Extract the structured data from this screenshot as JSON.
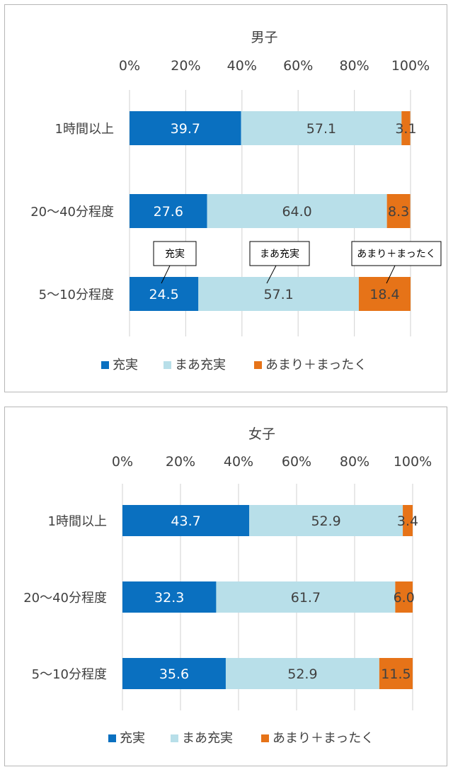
{
  "colors": {
    "fulfilled": "#0a70c0",
    "somewhat": "#b8dfe9",
    "notmuch": "#e67318",
    "gridline": "#d9d9d9",
    "text": "#404040"
  },
  "chart_data": [
    {
      "type": "bar",
      "orientation": "horizontal",
      "stacked": true,
      "title": "男子",
      "xlim": [
        0,
        100
      ],
      "ticks": [
        "0%",
        "20%",
        "40%",
        "60%",
        "80%",
        "100%"
      ],
      "categories": [
        "1時間以上",
        "20～40分程度",
        "5～10分程度"
      ],
      "series": [
        {
          "name": "充実",
          "values": [
            39.7,
            27.6,
            24.5
          ]
        },
        {
          "name": "まあ充実",
          "values": [
            57.1,
            64.0,
            57.1
          ]
        },
        {
          "name": "あまり＋まったく",
          "values": [
            3.1,
            8.3,
            18.4
          ]
        }
      ],
      "labels": [
        [
          "39.7",
          "57.1",
          "3.1"
        ],
        [
          "27.6",
          "64.0",
          "8.3"
        ],
        [
          "24.5",
          "57.1",
          "18.4"
        ]
      ],
      "legend": "bottom",
      "callouts": [
        "充実",
        "まあ充実",
        "あまり＋まったく"
      ]
    },
    {
      "type": "bar",
      "orientation": "horizontal",
      "stacked": true,
      "title": "女子",
      "xlim": [
        0,
        100
      ],
      "ticks": [
        "0%",
        "20%",
        "40%",
        "60%",
        "80%",
        "100%"
      ],
      "categories": [
        "1時間以上",
        "20～40分程度",
        "5～10分程度"
      ],
      "series": [
        {
          "name": "充実",
          "values": [
            43.7,
            32.3,
            35.6
          ]
        },
        {
          "name": "まあ充実",
          "values": [
            52.9,
            61.7,
            52.9
          ]
        },
        {
          "name": "あまり＋まったく",
          "values": [
            3.4,
            6.0,
            11.5
          ]
        }
      ],
      "labels": [
        [
          "43.7",
          "52.9",
          "3.4"
        ],
        [
          "32.3",
          "61.7",
          "6.0"
        ],
        [
          "35.6",
          "52.9",
          "11.5"
        ]
      ],
      "legend": "bottom",
      "callouts": []
    }
  ]
}
